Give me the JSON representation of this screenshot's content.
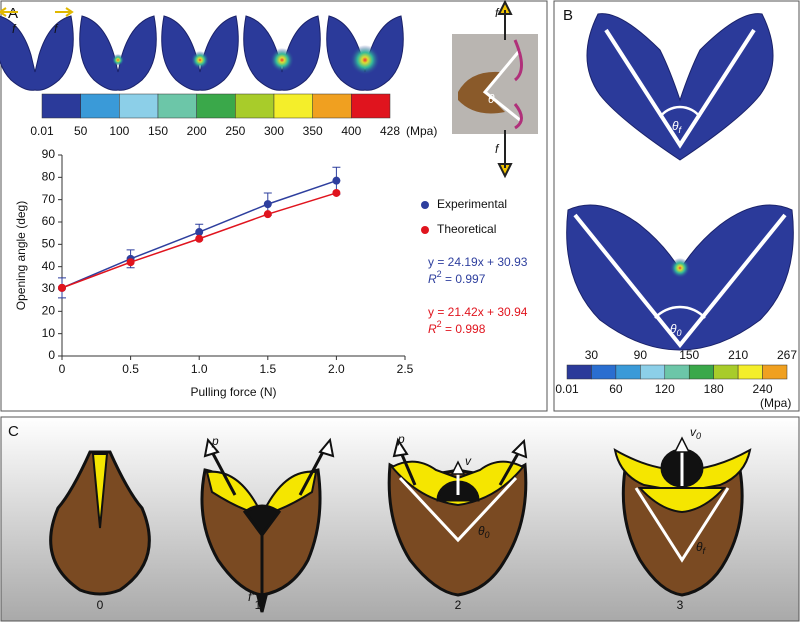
{
  "panels": {
    "a": "A",
    "b": "B",
    "c": "C"
  },
  "panel_a": {
    "force_labels": [
      "f",
      "f"
    ],
    "photo_force_labels": [
      "f",
      "f"
    ],
    "photo_angle": "θ",
    "colorbar": {
      "labels": [
        "0.01",
        "50",
        "100",
        "150",
        "200",
        "250",
        "300",
        "350",
        "400",
        "428"
      ],
      "unit": "(Mpa)"
    }
  },
  "chart_data": {
    "type": "line",
    "x_label": "Pulling force (N)",
    "y_label": "Opening angle (deg)",
    "x": [
      0,
      0.5,
      1,
      1.5,
      2
    ],
    "series": [
      {
        "name": "Experimental",
        "color": "#2e3f9e",
        "values": [
          30.5,
          43.5,
          55.5,
          68,
          78.5
        ],
        "errors": [
          4.5,
          4,
          3.5,
          5,
          6
        ]
      },
      {
        "name": "Theoretical",
        "color": "#e0141e",
        "values": [
          30.5,
          42,
          52.5,
          63.5,
          73
        ]
      }
    ],
    "xlim": [
      0,
      2.5
    ],
    "xticks": [
      0,
      0.5,
      {
        "value": 1,
        "label": "1.0"
      },
      1.5,
      {
        "value": 2,
        "label": "2.0"
      },
      2.5
    ],
    "ylim": [
      0,
      90
    ],
    "yticks": [
      0,
      10,
      20,
      30,
      40,
      50,
      60,
      70,
      80,
      90
    ],
    "legend": "right",
    "annotations": [
      {
        "equation": "y = 24.19x + 30.93",
        "r_symbol": "R",
        "r_sup": "2",
        "r_text": " = 0.997",
        "color": "#2e3f9e"
      },
      {
        "equation": "y = 21.42x + 30.94",
        "r_symbol": "R",
        "r_sup": "2",
        "r_text": " = 0.998",
        "color": "#e0141e"
      }
    ]
  },
  "panel_b": {
    "angles": [
      {
        "symbol": "θ",
        "sub": "f"
      },
      {
        "symbol": "θ",
        "sub": "0"
      }
    ],
    "colorbar": {
      "top_labels": [
        "30",
        "90",
        "150",
        "210",
        "267"
      ],
      "bottom_labels": [
        "0.01",
        "60",
        "120",
        "180",
        "240"
      ],
      "unit": "(Mpa)"
    }
  },
  "panel_c": {
    "stages": [
      "0",
      "1",
      "2",
      "3"
    ],
    "p_labels": [
      "p",
      "p"
    ],
    "v_label": "v",
    "v0": {
      "symbol": "v",
      "sub": "0"
    },
    "theta0": {
      "symbol": "θ",
      "sub": "0"
    },
    "thetaf": {
      "symbol": "θ",
      "sub": "f"
    },
    "f_label": "f'"
  }
}
